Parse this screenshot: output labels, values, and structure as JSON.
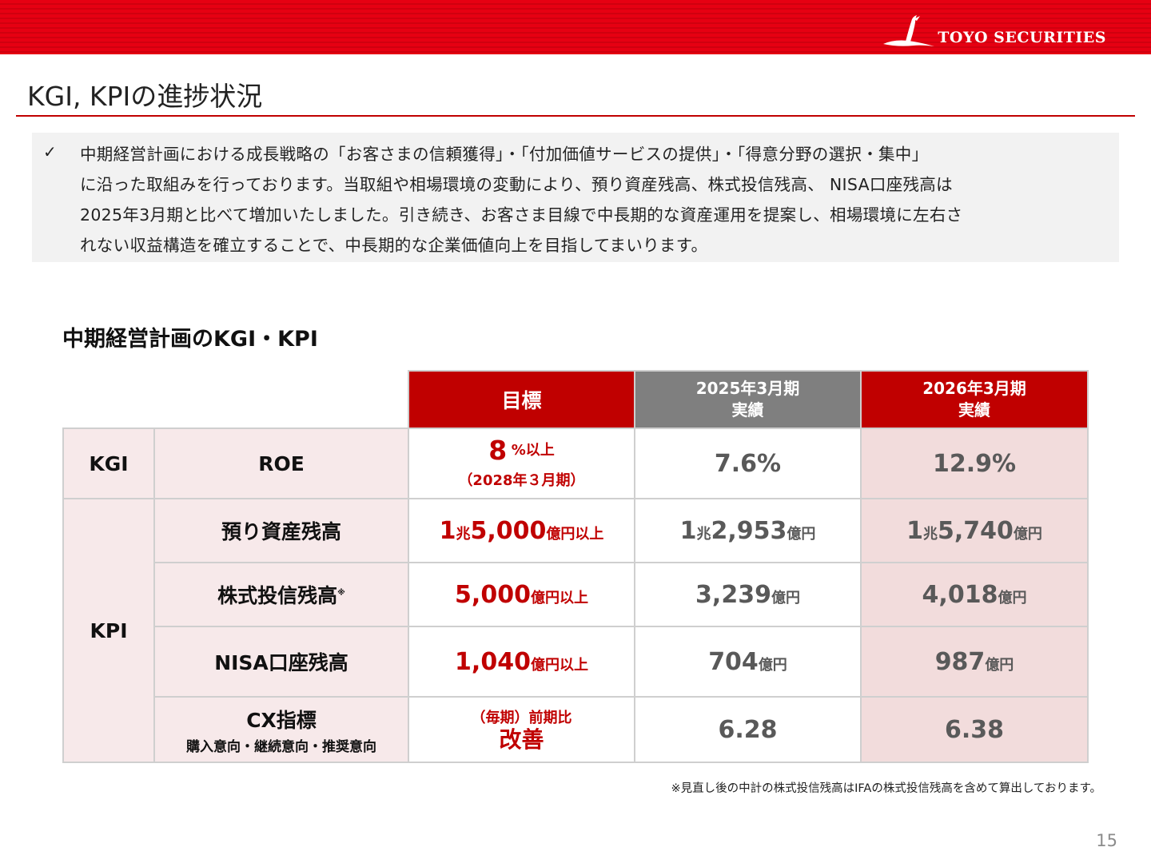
{
  "header": {
    "logo_text": "TOYO SECURITIES",
    "page_title": "KGI, KPIの進捗状況"
  },
  "summary": {
    "check_glyph": "✓",
    "lines": [
      "中期経営計画における成長戦略の「お客さまの信頼獲得」・「付加価値サービスの提供」・「得意分野の選択・集中」",
      "に沿った取組みを行っております。当取組や相場環境の変動により、預り資産残高、株式投信残高、 NISA口座残高は",
      "2025年3月期と比べて増加いたしました。引き続き、お客さま目線で中長期的な資産運用を提案し、相場環境に左右さ",
      "れない収益構造を確立することで、中長期的な企業価値向上を目指してまいります。"
    ]
  },
  "section_title": "中期経営計画のKGI・KPI",
  "table": {
    "headers": {
      "target": "目標",
      "fy2025_line1": "2025年3月期",
      "fy2025_line2": "実績",
      "fy2026_line1": "2026年3月期",
      "fy2026_line2": "実績"
    },
    "kgi_label": "KGI",
    "kpi_label": "KPI",
    "rows": {
      "roe": {
        "item": "ROE",
        "target_num": "8",
        "target_unit": "%以上",
        "target_note": "（2028年３月期）",
        "fy2025": "7.6%",
        "fy2026": "12.9%"
      },
      "assets": {
        "item": "預り資産残高",
        "target_a": "1",
        "target_b": "兆",
        "target_c": "5,000",
        "target_d": "億円以上",
        "fy2025_a": "1",
        "fy2025_b": "兆",
        "fy2025_c": "2,953",
        "fy2025_d": "億円",
        "fy2026_a": "1",
        "fy2026_b": "兆",
        "fy2026_c": "5,740",
        "fy2026_d": "億円"
      },
      "funds": {
        "item": "株式投信残高",
        "item_mark": "※",
        "target_num": "5,000",
        "target_unit": "億円以上",
        "fy2025_num": "3,239",
        "fy2025_unit": "億円",
        "fy2026_num": "4,018",
        "fy2026_unit": "億円"
      },
      "nisa": {
        "item": "NISA口座残高",
        "target_num": "1,040",
        "target_unit": "億円以上",
        "fy2025_num": "704",
        "fy2025_unit": "億円",
        "fy2026_num": "987",
        "fy2026_unit": "億円"
      },
      "cx": {
        "item": "CX指標",
        "item_sub": "購入意向・継続意向・推奨意向",
        "target_line1": "（毎期）前期比",
        "target_line2": "改善",
        "fy2025": "6.28",
        "fy2026": "6.38"
      }
    }
  },
  "footnote": "※見直し後の中計の株式投信残高はIFAの株式投信残高を含めて算出しております。",
  "page_number": "15",
  "colors": {
    "brand_red": "#e60012",
    "header_red": "#c00000",
    "header_gray": "#7f7f7f",
    "row_pink": "#f7e9ea",
    "latest_pink": "#f2dcdc"
  }
}
